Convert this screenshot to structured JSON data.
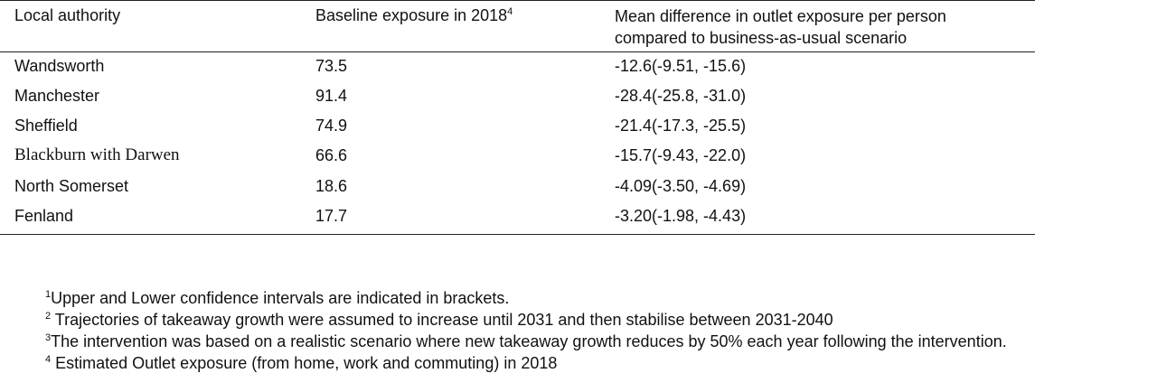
{
  "table": {
    "headers": {
      "col1": "Local authority",
      "col2": "Baseline exposure in 2018",
      "col2_sup": "4",
      "col3": "Mean difference in outlet exposure per person compared to business-as-usual scenario"
    },
    "rows": [
      {
        "authority": "Wandsworth",
        "baseline": "73.5",
        "difference": "-12.6(-9.51, -15.6)"
      },
      {
        "authority": "Manchester",
        "baseline": "91.4",
        "difference": "-28.4(-25.8, -31.0)"
      },
      {
        "authority": "Sheffield",
        "baseline": "74.9",
        "difference": "-21.4(-17.3, -25.5)"
      },
      {
        "authority": "Blackburn with Darwen",
        "baseline": "66.6",
        "difference": "-15.7(-9.43, -22.0)"
      },
      {
        "authority": "North Somerset",
        "baseline": "18.6",
        "difference": "-4.09(-3.50, -4.69)"
      },
      {
        "authority": "Fenland",
        "baseline": "17.7",
        "difference": "-3.20(-1.98, -4.43)"
      }
    ]
  },
  "footnotes": [
    {
      "mark": "1",
      "text": "Upper and Lower confidence intervals are indicated in brackets."
    },
    {
      "mark": "2",
      "text": " Trajectories of takeaway growth were assumed to increase until 2031 and then stabilise between 2031-2040"
    },
    {
      "mark": "3",
      "text": "The intervention was based on a realistic scenario where new takeaway growth reduces by 50% each year following the intervention."
    },
    {
      "mark": "4",
      "text": " Estimated Outlet exposure (from home, work and commuting) in 2018"
    }
  ]
}
